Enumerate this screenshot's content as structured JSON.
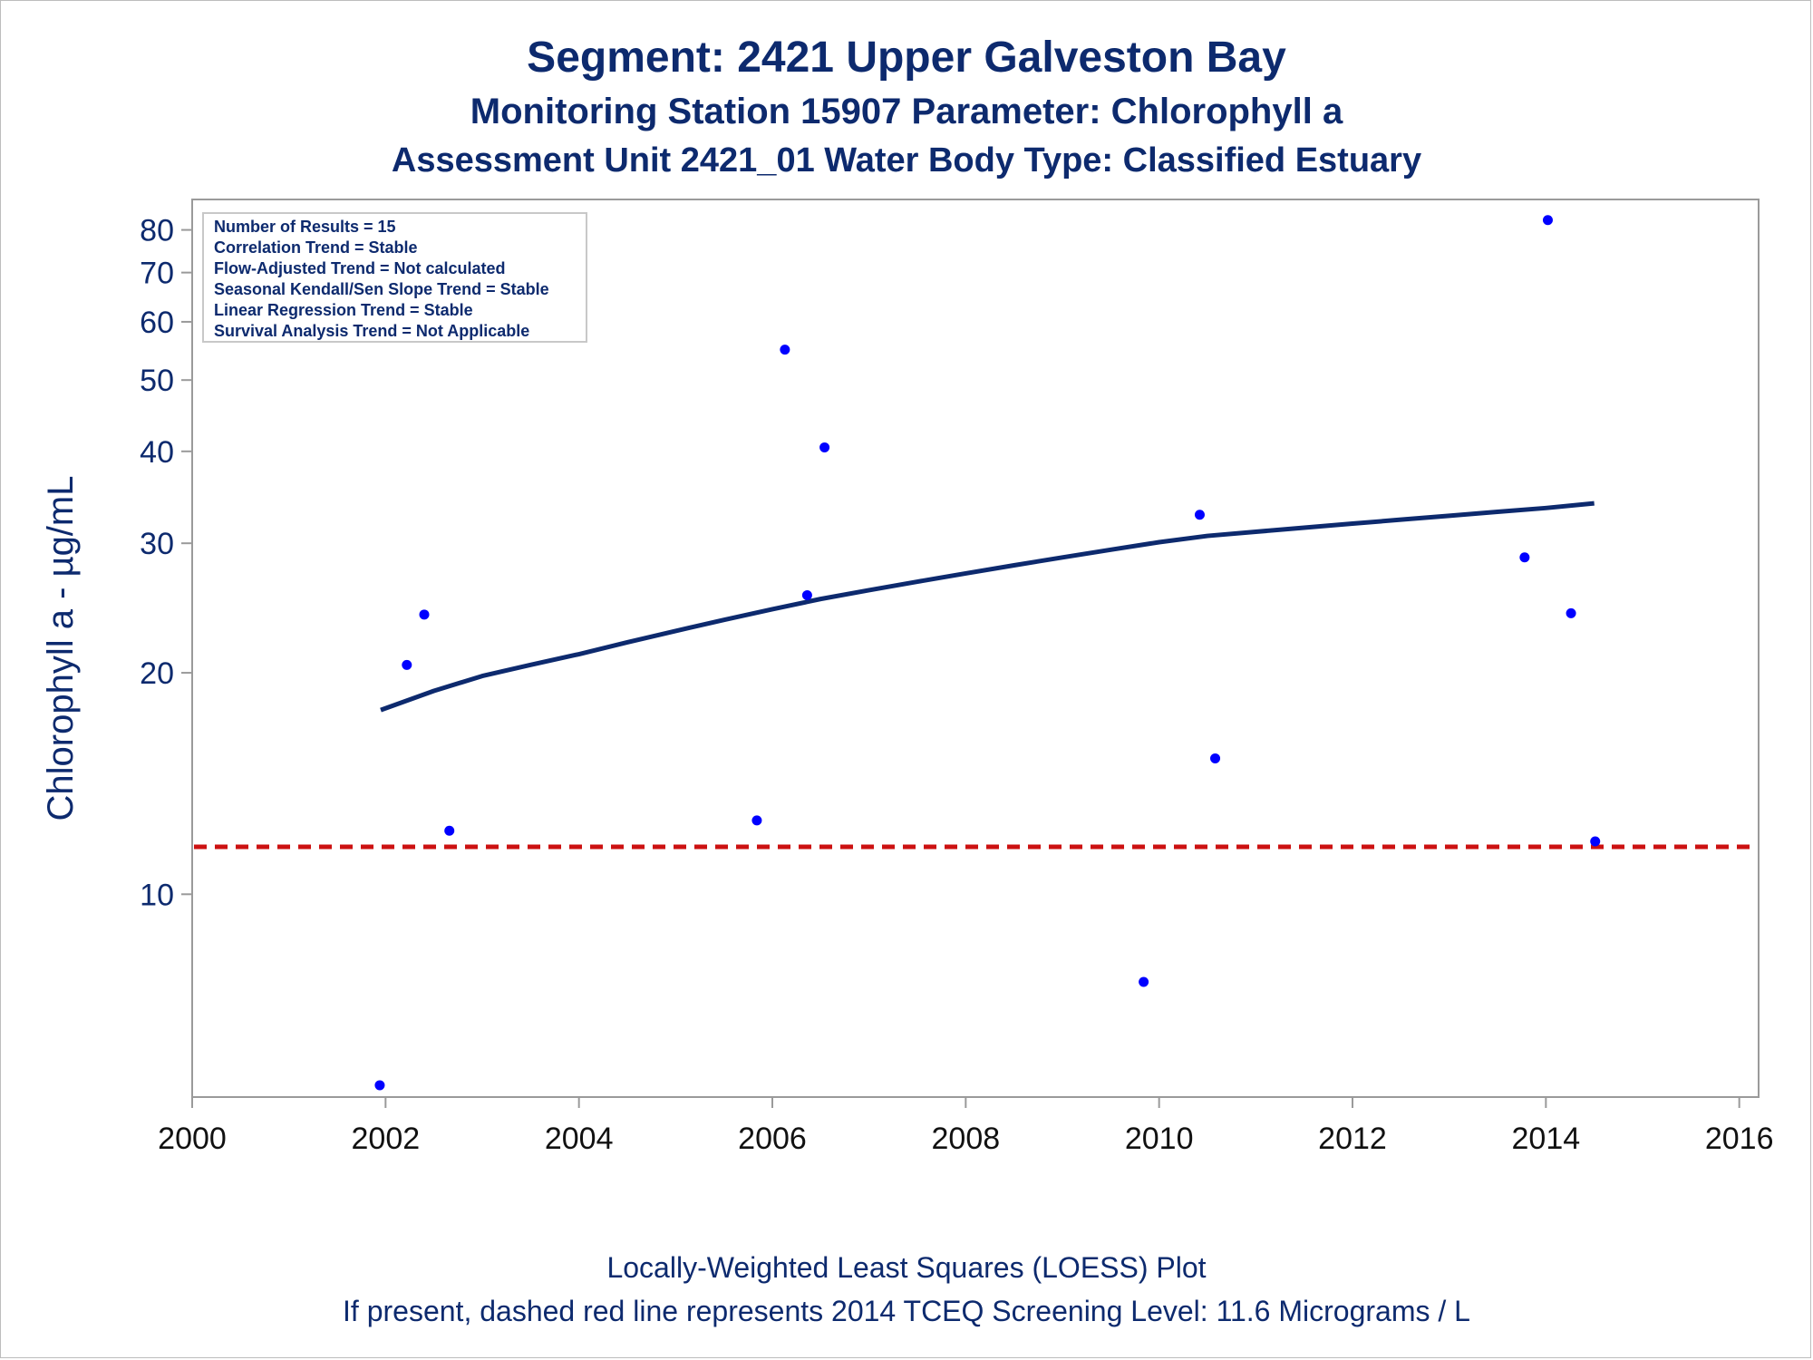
{
  "title": "Segment: 2421  Upper Galveston Bay",
  "subtitle1": "Monitoring Station 15907 Parameter: Chlorophyll a",
  "subtitle2": "Assessment Unit 2421_01   Water Body Type: Classified Estuary",
  "footnote1": "Locally-Weighted Least Squares (LOESS) Plot",
  "footnote2": "If present, dashed red line represents 2014 TCEQ Screening Level: 11.6 Micrograms / L",
  "stats": [
    "Number of Results = 15",
    "Correlation Trend = Stable",
    "Flow-Adjusted Trend = Not calculated",
    "Seasonal Kendall/Sen Slope Trend = Stable",
    "Linear Regression Trend = Stable",
    "Survival Analysis Trend = Not Applicable"
  ],
  "chart_data": {
    "type": "scatter",
    "ylabel": "Chlorophyll a -  µg/mL",
    "xlim": [
      2000,
      2016.2
    ],
    "ylim": [
      5.3,
      88
    ],
    "yscale": "log",
    "grid": false,
    "x_ticks": [
      2000,
      2002,
      2004,
      2006,
      2008,
      2010,
      2012,
      2014,
      2016
    ],
    "y_ticks": [
      10,
      20,
      30,
      40,
      50,
      60,
      70,
      80
    ],
    "colors": {
      "text": "#0d2a6e",
      "points": "#0000ff",
      "loess": "#0d2a6e",
      "screening": "#cc1111",
      "axis": "#9a9a9a"
    },
    "series": [
      {
        "type": "scatter",
        "x": [
          2001.94,
          2002.22,
          2002.4,
          2002.66,
          2005.84,
          2006.13,
          2006.36,
          2006.54,
          2009.84,
          2010.42,
          2010.58,
          2013.78,
          2014.02,
          2014.26,
          2014.51
        ],
        "y": [
          5.5,
          20.5,
          24.0,
          12.2,
          12.6,
          55.0,
          25.5,
          40.5,
          7.6,
          32.8,
          15.3,
          28.7,
          82.5,
          24.1,
          11.8
        ]
      },
      {
        "type": "line",
        "x": [
          2001.95,
          2002.5,
          2003.0,
          2003.5,
          2004.0,
          2004.5,
          2005.0,
          2005.5,
          2006.0,
          2006.5,
          2007.0,
          2007.5,
          2008.0,
          2008.5,
          2009.0,
          2009.5,
          2010.0,
          2010.5,
          2011.0,
          2011.5,
          2012.0,
          2012.5,
          2013.0,
          2013.5,
          2014.0,
          2014.5
        ],
        "y": [
          17.8,
          18.9,
          19.8,
          20.5,
          21.2,
          22.0,
          22.8,
          23.6,
          24.4,
          25.2,
          25.9,
          26.6,
          27.3,
          28.0,
          28.7,
          29.4,
          30.1,
          30.7,
          31.1,
          31.5,
          31.9,
          32.3,
          32.7,
          33.1,
          33.5,
          34.0
        ]
      },
      {
        "type": "reference-line",
        "y": 11.6
      }
    ]
  }
}
